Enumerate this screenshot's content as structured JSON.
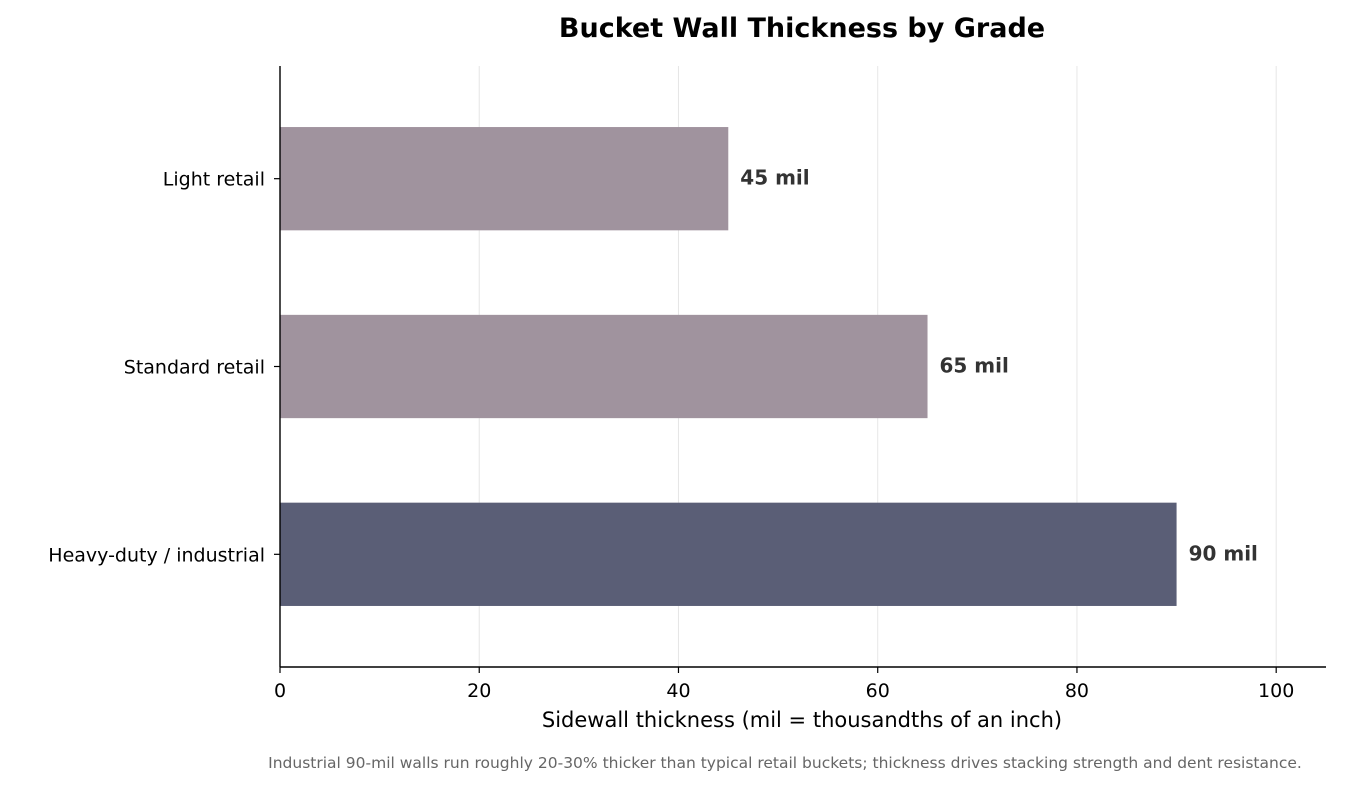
{
  "chart_data": {
    "type": "bar",
    "orientation": "horizontal",
    "title": "Bucket Wall Thickness by Grade",
    "xlabel": "Sidewall thickness (mil = thousandths of an inch)",
    "ylabel": "",
    "categories": [
      "Light retail",
      "Standard retail",
      "Heavy-duty / industrial"
    ],
    "values": [
      45,
      65,
      90
    ],
    "data_labels": [
      "45 mil",
      "65 mil",
      "90 mil"
    ],
    "bar_colors": [
      "#a0939e",
      "#a0939e",
      "#5a5e76"
    ],
    "xlim": [
      0,
      105
    ],
    "xticks": [
      0,
      20,
      40,
      60,
      80,
      100
    ],
    "xtick_labels": [
      "0",
      "20",
      "40",
      "60",
      "80",
      "100"
    ],
    "grid": "vertical",
    "grid_color": "#e6e6e6",
    "caption": "Industrial 90-mil walls run roughly 20-30% thicker than typical retail buckets; thickness drives stacking strength and dent resistance."
  }
}
